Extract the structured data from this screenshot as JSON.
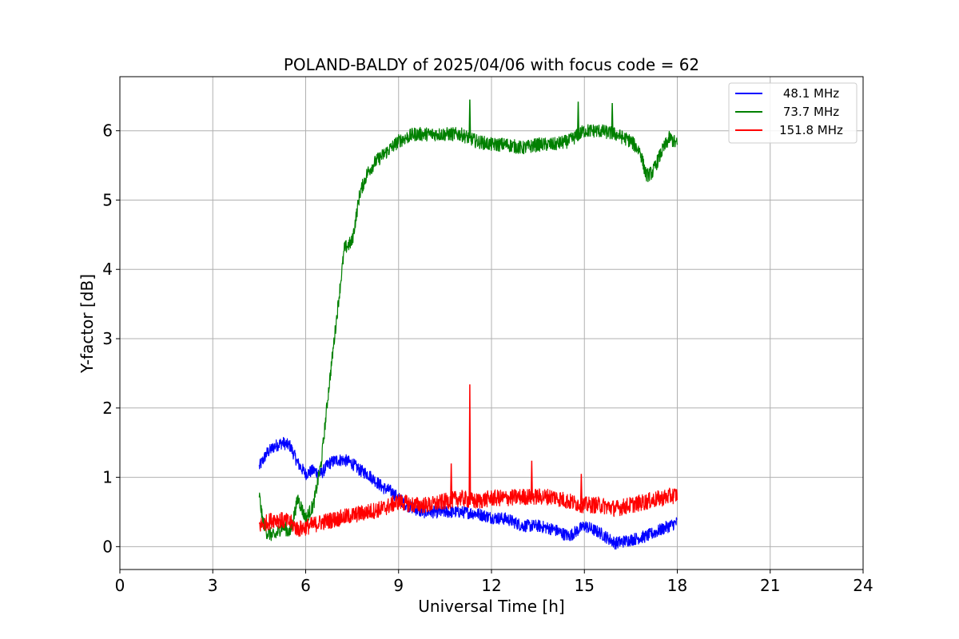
{
  "chart_data": {
    "type": "line",
    "title": "POLAND-BALDY of 2025/04/06 with focus code = 62",
    "xlabel": "Universal Time [h]",
    "ylabel": "Y-factor [dB]",
    "xlim": [
      0,
      24
    ],
    "ylim": [
      -0.33,
      6.78
    ],
    "xticks": [
      0,
      3,
      6,
      9,
      12,
      15,
      18,
      21,
      24
    ],
    "yticks": [
      0,
      1,
      2,
      3,
      4,
      5,
      6
    ],
    "grid": true,
    "legend_position": "top-right",
    "series": [
      {
        "name": "48.1 MHz",
        "color": "#0000ff",
        "x": [
          4.5,
          4.75,
          5.0,
          5.25,
          5.5,
          5.75,
          6.0,
          6.25,
          6.5,
          6.75,
          7.0,
          7.25,
          7.5,
          7.75,
          8.0,
          8.25,
          8.5,
          8.75,
          9.0,
          9.25,
          9.5,
          9.75,
          10.0,
          10.5,
          11.0,
          11.5,
          12.0,
          12.5,
          13.0,
          13.5,
          14.0,
          14.5,
          15.0,
          15.5,
          16.0,
          16.5,
          17.0,
          17.5,
          18.0
        ],
        "y": [
          1.15,
          1.35,
          1.45,
          1.5,
          1.45,
          1.2,
          1.05,
          1.1,
          1.05,
          1.2,
          1.25,
          1.25,
          1.2,
          1.1,
          1.05,
          0.95,
          0.85,
          0.8,
          0.7,
          0.6,
          0.55,
          0.5,
          0.5,
          0.5,
          0.5,
          0.48,
          0.42,
          0.4,
          0.3,
          0.3,
          0.25,
          0.15,
          0.3,
          0.2,
          0.05,
          0.1,
          0.15,
          0.25,
          0.35
        ],
        "noise": 0.09,
        "spikes": []
      },
      {
        "name": "73.7 MHz",
        "color": "#008000",
        "x": [
          4.5,
          4.6,
          4.75,
          5.0,
          5.25,
          5.5,
          5.75,
          6.0,
          6.25,
          6.5,
          6.75,
          7.0,
          7.25,
          7.5,
          7.75,
          8.0,
          8.25,
          8.5,
          8.75,
          9.0,
          9.5,
          10.0,
          10.5,
          11.0,
          11.5,
          12.0,
          12.5,
          13.0,
          13.5,
          14.0,
          14.5,
          15.0,
          15.5,
          16.0,
          16.5,
          16.8,
          17.0,
          17.2,
          17.5,
          17.75,
          18.0
        ],
        "y": [
          0.75,
          0.4,
          0.2,
          0.15,
          0.3,
          0.2,
          0.7,
          0.4,
          0.6,
          1.2,
          2.3,
          3.3,
          4.3,
          4.4,
          5.1,
          5.4,
          5.55,
          5.65,
          5.75,
          5.85,
          5.95,
          5.95,
          5.95,
          5.95,
          5.85,
          5.8,
          5.8,
          5.75,
          5.8,
          5.8,
          5.85,
          6.0,
          6.0,
          5.95,
          5.85,
          5.7,
          5.35,
          5.4,
          5.7,
          5.9,
          5.8
        ],
        "noise": 0.1,
        "spikes": [
          [
            11.3,
            6.45
          ],
          [
            14.8,
            6.42
          ],
          [
            15.9,
            6.4
          ]
        ]
      },
      {
        "name": "151.8 MHz",
        "color": "#ff0000",
        "x": [
          4.5,
          5.0,
          5.5,
          5.75,
          6.0,
          6.5,
          7.0,
          7.5,
          8.0,
          8.5,
          9.0,
          9.5,
          10.0,
          10.5,
          11.0,
          11.5,
          12.0,
          12.5,
          13.0,
          13.5,
          14.0,
          14.5,
          15.0,
          15.5,
          16.0,
          16.5,
          17.0,
          17.5,
          18.0
        ],
        "y": [
          0.3,
          0.4,
          0.35,
          0.25,
          0.28,
          0.35,
          0.4,
          0.45,
          0.5,
          0.55,
          0.65,
          0.6,
          0.6,
          0.65,
          0.7,
          0.65,
          0.7,
          0.7,
          0.72,
          0.72,
          0.72,
          0.65,
          0.6,
          0.6,
          0.55,
          0.6,
          0.65,
          0.7,
          0.75
        ],
        "noise": 0.12,
        "spikes": [
          [
            11.3,
            2.34
          ],
          [
            10.7,
            1.2
          ],
          [
            13.3,
            1.24
          ],
          [
            14.9,
            1.05
          ]
        ]
      }
    ]
  }
}
